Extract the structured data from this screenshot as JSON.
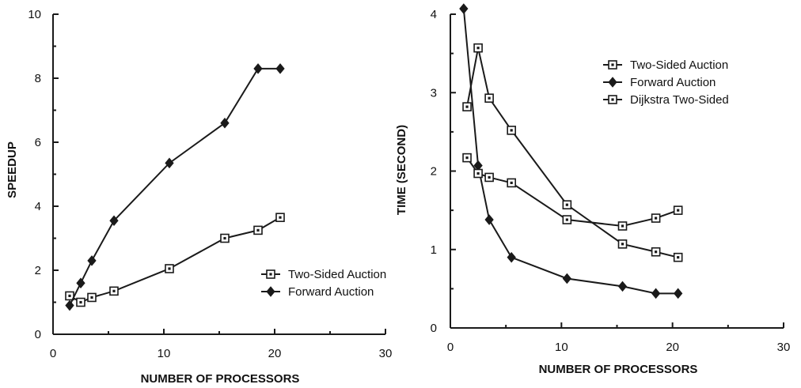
{
  "chart_data": [
    {
      "type": "line",
      "xlabel": "NUMBER OF PROCESSORS",
      "ylabel": "SPEEDUP",
      "xlim": [
        0,
        30
      ],
      "ylim": [
        0,
        10
      ],
      "xticks": [
        "0",
        "10",
        "20",
        "30"
      ],
      "yticks": [
        "0",
        "2",
        "4",
        "6",
        "8",
        "10"
      ],
      "legend_position": "lower-right",
      "series": [
        {
          "name": "Two-Sided Auction",
          "marker": "square",
          "x": [
            1.5,
            2.5,
            3.5,
            5.5,
            10.5,
            15.5,
            18.5,
            20.5
          ],
          "y": [
            1.2,
            1.0,
            1.15,
            1.35,
            2.05,
            3.0,
            3.25,
            3.65
          ]
        },
        {
          "name": "Forward Auction",
          "marker": "diamond",
          "x": [
            1.5,
            2.5,
            3.5,
            5.5,
            10.5,
            15.5,
            18.5,
            20.5
          ],
          "y": [
            0.9,
            1.6,
            2.3,
            3.55,
            5.35,
            6.6,
            8.3,
            8.3
          ]
        }
      ]
    },
    {
      "type": "line",
      "xlabel": "NUMBER OF PROCESSORS",
      "ylabel": "TIME (SECOND)",
      "xlim": [
        0,
        30
      ],
      "ylim": [
        0,
        4
      ],
      "xticks": [
        "0",
        "10",
        "20",
        "30"
      ],
      "yticks": [
        "0",
        "1",
        "2",
        "3",
        "4"
      ],
      "legend_position": "top-right",
      "series": [
        {
          "name": "Two-Sided Auction",
          "marker": "square",
          "x": [
            1.5,
            2.5,
            3.5,
            5.5,
            10.5,
            15.5,
            18.5,
            20.5
          ],
          "y": [
            2.82,
            3.57,
            2.93,
            2.52,
            1.57,
            1.07,
            0.97,
            0.9
          ]
        },
        {
          "name": "Forward Auction",
          "marker": "diamond",
          "x": [
            1.2,
            2.5,
            3.5,
            5.5,
            10.5,
            15.5,
            18.5,
            20.5
          ],
          "y": [
            4.07,
            2.07,
            1.38,
            0.9,
            0.63,
            0.53,
            0.44,
            0.44
          ]
        },
        {
          "name": "Dijkstra Two-Sided",
          "marker": "square",
          "x": [
            1.5,
            2.5,
            3.5,
            5.5,
            10.5,
            15.5,
            18.5,
            20.5
          ],
          "y": [
            2.17,
            1.97,
            1.92,
            1.85,
            1.38,
            1.3,
            1.4,
            1.5
          ]
        }
      ]
    }
  ]
}
